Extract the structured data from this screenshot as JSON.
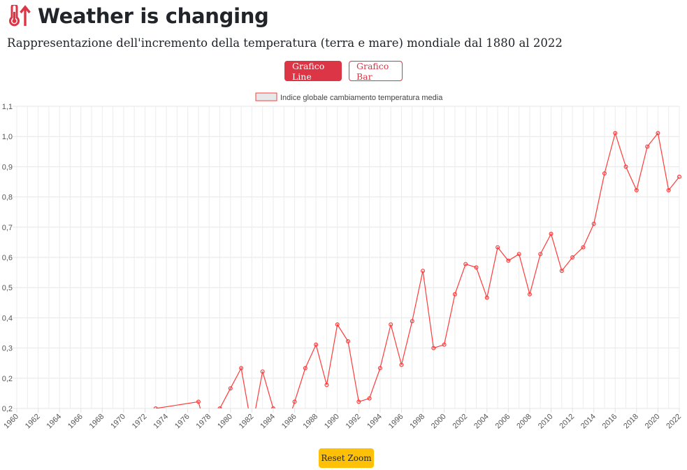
{
  "header": {
    "title": "Weather is changing",
    "subtitle": "Rappresentazione dell'incremento della temperatura (terra e mare) mondiale dal 1880 al 2022",
    "icon": "thermometer-up-icon",
    "accent_color": "#dc3545"
  },
  "buttons": {
    "line_label": "Grafico Line",
    "bar_label": "Grafico Bar",
    "reset_label": "Reset Zoom",
    "reset_color": "#ffc107"
  },
  "chart_data": {
    "type": "line",
    "legend": {
      "label": "Indice globale cambiamento temperatura media",
      "position": "top"
    },
    "xlim": [
      1960,
      2022
    ],
    "ylim": [
      0.2,
      1.1
    ],
    "y_ticks": [
      "1,1",
      "1,0",
      "0,9",
      "0,8",
      "0,7",
      "0,6",
      "0,5",
      "0,4",
      "0,3",
      "0,2",
      "0,2"
    ],
    "x_ticks": [
      1960,
      1962,
      1964,
      1966,
      1968,
      1970,
      1972,
      1974,
      1976,
      1978,
      1980,
      1982,
      1984,
      1986,
      1988,
      1990,
      1992,
      1994,
      1996,
      1998,
      2000,
      2002,
      2004,
      2006,
      2008,
      2010,
      2012,
      2014,
      2016,
      2018,
      2020,
      2022
    ],
    "series": [
      {
        "name": "Indice globale cambiamento temperatura media",
        "color": "#ff3b3b",
        "points": [
          [
            1973,
            0.2
          ],
          [
            1977,
            0.22
          ],
          [
            1978,
            0.1
          ],
          [
            1979,
            0.2
          ],
          [
            1980,
            0.26
          ],
          [
            1981,
            0.32
          ],
          [
            1982,
            0.14
          ],
          [
            1983,
            0.31
          ],
          [
            1984,
            0.2
          ],
          [
            1985,
            0.12
          ],
          [
            1986,
            0.22
          ],
          [
            1987,
            0.32
          ],
          [
            1988,
            0.39
          ],
          [
            1989,
            0.27
          ],
          [
            1990,
            0.45
          ],
          [
            1991,
            0.4
          ],
          [
            1992,
            0.22
          ],
          [
            1993,
            0.23
          ],
          [
            1994,
            0.32
          ],
          [
            1995,
            0.45
          ],
          [
            1996,
            0.33
          ],
          [
            1997,
            0.46
          ],
          [
            1998,
            0.61
          ],
          [
            1999,
            0.38
          ],
          [
            2000,
            0.39
          ],
          [
            2001,
            0.54
          ],
          [
            2002,
            0.63
          ],
          [
            2003,
            0.62
          ],
          [
            2004,
            0.53
          ],
          [
            2005,
            0.68
          ],
          [
            2006,
            0.64
          ],
          [
            2007,
            0.66
          ],
          [
            2008,
            0.54
          ],
          [
            2009,
            0.66
          ],
          [
            2010,
            0.72
          ],
          [
            2011,
            0.61
          ],
          [
            2012,
            0.65
          ],
          [
            2013,
            0.68
          ],
          [
            2014,
            0.75
          ],
          [
            2015,
            0.9
          ],
          [
            2016,
            1.02
          ],
          [
            2017,
            0.92
          ],
          [
            2018,
            0.85
          ],
          [
            2019,
            0.98
          ],
          [
            2020,
            1.02
          ],
          [
            2021,
            0.85
          ],
          [
            2022,
            0.89
          ]
        ]
      }
    ]
  }
}
